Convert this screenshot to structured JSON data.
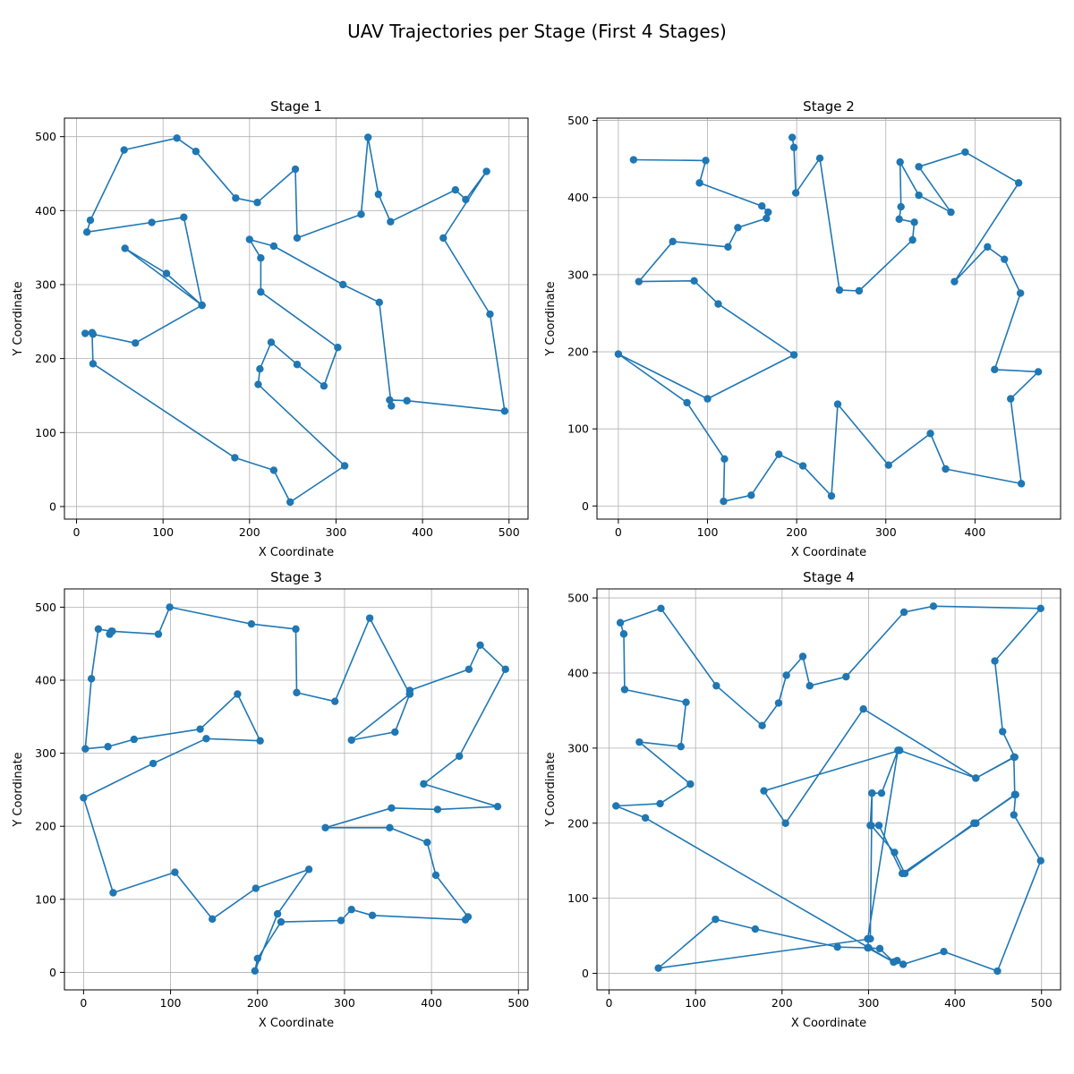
{
  "figure": {
    "suptitle": "UAV Trajectories per Stage (First 4 Stages)"
  },
  "style": {
    "line_color": "#1f77b4",
    "marker_color": "#1f77b4",
    "grid_color": "#b0b0b0",
    "background": "#ffffff"
  },
  "chart_data": [
    {
      "type": "line",
      "title": "Stage 1",
      "xlabel": "X Coordinate",
      "ylabel": "Y Coordinate",
      "xlim": [
        -14,
        522
      ],
      "ylim": [
        -17,
        525
      ],
      "xticks": [
        0,
        100,
        200,
        300,
        400,
        500
      ],
      "yticks": [
        0,
        100,
        200,
        300,
        400,
        500
      ],
      "grid": true,
      "series": [
        {
          "marker": "circle",
          "x": [
            19,
            68,
            145,
            56,
            104,
            145,
            124,
            87,
            12,
            16,
            55,
            116,
            138,
            184,
            209,
            253,
            255,
            329,
            337,
            349,
            363,
            438,
            450,
            474,
            424,
            478,
            495,
            382,
            362,
            364,
            350,
            308,
            228,
            200,
            213,
            213,
            302,
            286,
            255,
            225,
            212,
            210,
            310,
            247,
            228,
            183,
            19,
            18,
            10
          ],
          "y": [
            233,
            221,
            272,
            349,
            315,
            272,
            391,
            384,
            371,
            387,
            482,
            498,
            480,
            417,
            411,
            456,
            363,
            395,
            499,
            422,
            385,
            428,
            415,
            453,
            363,
            260,
            129,
            143,
            144,
            136,
            276,
            300,
            352,
            361,
            336,
            290,
            215,
            163,
            192,
            222,
            186,
            165,
            55,
            6,
            49,
            66,
            193,
            235,
            234
          ]
        }
      ]
    },
    {
      "type": "line",
      "title": "Stage 2",
      "xlabel": "X Coordinate",
      "ylabel": "Y Coordinate",
      "xlim": [
        -24,
        496
      ],
      "ylim": [
        -17,
        503
      ],
      "xticks": [
        0,
        100,
        200,
        300,
        400
      ],
      "yticks": [
        0,
        100,
        200,
        300,
        400,
        500
      ],
      "grid": true,
      "series": [
        {
          "marker": "circle",
          "x": [
            17,
            98,
            91,
            161,
            168,
            166,
            134,
            123,
            61,
            23,
            85,
            112,
            197,
            100,
            0,
            77,
            119,
            118,
            149,
            180,
            207,
            239,
            246,
            303,
            350,
            367,
            452,
            440,
            471,
            422,
            451,
            433,
            414,
            377,
            449,
            389,
            337,
            373,
            337,
            316,
            317,
            315,
            332,
            330,
            270,
            248,
            226,
            199,
            197,
            195
          ],
          "y": [
            449,
            448,
            419,
            389,
            381,
            373,
            361,
            336,
            343,
            291,
            292,
            262,
            196,
            139,
            197,
            134,
            61,
            6,
            14,
            67,
            52,
            13,
            132,
            53,
            94,
            48,
            29,
            139,
            174,
            177,
            276,
            320,
            336,
            291,
            419,
            459,
            440,
            381,
            403,
            446,
            388,
            372,
            368,
            345,
            279,
            280,
            451,
            406,
            465,
            478
          ]
        }
      ]
    },
    {
      "type": "line",
      "title": "Stage 3",
      "xlabel": "X Coordinate",
      "ylabel": "Y Coordinate",
      "xlim": [
        -22,
        511
      ],
      "ylim": [
        -24,
        525
      ],
      "xticks": [
        0,
        100,
        200,
        300,
        400,
        500
      ],
      "yticks": [
        0,
        100,
        200,
        300,
        400,
        500
      ],
      "grid": true,
      "series": [
        {
          "marker": "circle",
          "x": [
            30,
            32,
            17,
            9,
            2,
            28,
            58,
            134,
            177,
            203,
            141,
            80,
            0,
            34,
            105,
            148,
            198,
            259,
            223,
            197,
            200,
            227,
            296,
            308,
            332,
            439,
            442,
            405,
            395,
            352,
            278,
            354,
            407,
            476,
            391,
            432,
            485,
            456,
            443,
            375,
            375,
            358,
            308,
            375,
            329,
            289,
            245,
            244,
            193,
            99,
            86,
            33
          ],
          "y": [
            463,
            467,
            470,
            402,
            306,
            309,
            319,
            333,
            381,
            317,
            320,
            286,
            239,
            109,
            137,
            73,
            115,
            141,
            80,
            2,
            19,
            69,
            71,
            86,
            78,
            72,
            76,
            133,
            178,
            198,
            198,
            225,
            223,
            227,
            258,
            296,
            415,
            448,
            415,
            386,
            381,
            329,
            318,
            381,
            485,
            371,
            383,
            470,
            477,
            500,
            463,
            467
          ]
        }
      ]
    },
    {
      "type": "line",
      "title": "Stage 4",
      "xlabel": "X Coordinate",
      "ylabel": "Y Coordinate",
      "xlim": [
        -14,
        522
      ],
      "ylim": [
        -22,
        512
      ],
      "xticks": [
        0,
        100,
        200,
        300,
        400,
        500
      ],
      "yticks": [
        0,
        100,
        200,
        300,
        400,
        500
      ],
      "grid": true,
      "series": [
        {
          "marker": "circle",
          "x": [
            17,
            13,
            60,
            124,
            177,
            196,
            205,
            224,
            232,
            274,
            341,
            375,
            499,
            446,
            455,
            469,
            424,
            336,
            179,
            204,
            294,
            424,
            468,
            469,
            422,
            342,
            330,
            303,
            304,
            315,
            334,
            299,
            300,
            313,
            329,
            333,
            340,
            387,
            449,
            499,
            468,
            470,
            422,
            424,
            424,
            339,
            312,
            302,
            304,
            302,
            57,
            123,
            169,
            264,
            299,
            329,
            42,
            8,
            59,
            94,
            35,
            83,
            89,
            18,
            17
          ],
          "y": [
            452,
            467,
            486,
            383,
            330,
            360,
            397,
            422,
            383,
            395,
            481,
            489,
            486,
            416,
            322,
            288,
            260,
            297,
            243,
            200,
            352,
            260,
            288,
            238,
            200,
            133,
            161,
            197,
            240,
            240,
            297,
            46,
            34,
            33,
            15,
            17,
            12,
            29,
            3,
            150,
            211,
            238,
            200,
            200,
            200,
            133,
            197,
            197,
            240,
            46,
            7,
            72,
            59,
            35,
            34,
            15,
            207,
            223,
            226,
            252,
            308,
            302,
            361,
            378,
            452
          ]
        }
      ]
    }
  ]
}
